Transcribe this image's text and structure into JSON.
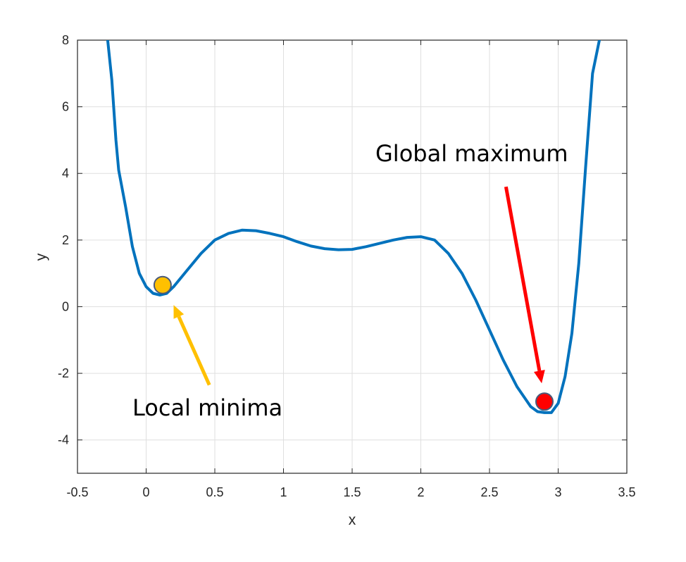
{
  "chart_data": {
    "type": "line",
    "xlabel": "x",
    "ylabel": "y",
    "xlim": [
      -0.5,
      3.5
    ],
    "ylim": [
      -5,
      8
    ],
    "xticks": [
      -0.5,
      0,
      0.5,
      1,
      1.5,
      2,
      2.5,
      3,
      3.5
    ],
    "xtick_labels": [
      "-0.5",
      "0",
      "0.5",
      "1",
      "1.5",
      "2",
      "2.5",
      "3",
      "3.5"
    ],
    "yticks": [
      -4,
      -2,
      0,
      2,
      4,
      6,
      8
    ],
    "ytick_labels": [
      "-4",
      "-2",
      "0",
      "2",
      "4",
      "6",
      "8"
    ],
    "grid": true,
    "series": [
      {
        "color": "#0072BD",
        "x": [
          -0.28,
          -0.25,
          -0.22,
          -0.2,
          -0.15,
          -0.1,
          -0.05,
          0.0,
          0.05,
          0.1,
          0.15,
          0.2,
          0.3,
          0.4,
          0.5,
          0.6,
          0.7,
          0.8,
          0.9,
          1.0,
          1.1,
          1.2,
          1.3,
          1.4,
          1.5,
          1.6,
          1.7,
          1.8,
          1.9,
          2.0,
          2.1,
          2.2,
          2.3,
          2.4,
          2.5,
          2.6,
          2.7,
          2.8,
          2.85,
          2.9,
          2.95,
          3.0,
          3.05,
          3.1,
          3.15,
          3.2,
          3.25,
          3.3
        ],
        "y": [
          8.0,
          6.8,
          5.0,
          4.1,
          3.0,
          1.8,
          1.0,
          0.6,
          0.4,
          0.35,
          0.4,
          0.6,
          1.1,
          1.6,
          2.0,
          2.2,
          2.3,
          2.28,
          2.2,
          2.1,
          1.95,
          1.82,
          1.74,
          1.71,
          1.72,
          1.8,
          1.9,
          2.0,
          2.08,
          2.1,
          2.0,
          1.6,
          1.0,
          0.2,
          -0.7,
          -1.6,
          -2.4,
          -3.0,
          -3.15,
          -3.18,
          -3.18,
          -2.9,
          -2.1,
          -0.8,
          1.3,
          4.2,
          7.0,
          8.0
        ]
      }
    ],
    "markers": [
      {
        "x": 0.12,
        "y": 0.65,
        "color": "#FFC000"
      },
      {
        "x": 2.9,
        "y": -2.85,
        "color": "#FF0000"
      }
    ],
    "annotations": [
      {
        "text": "Local minima",
        "color": "#FFC000",
        "arrow_from": [
          0.46,
          -2.35
        ],
        "arrow_to": [
          0.2,
          0.05
        ]
      },
      {
        "text": "Global maximum",
        "color": "#FF0000",
        "arrow_from": [
          2.62,
          3.6
        ],
        "arrow_to": [
          2.88,
          -2.3
        ]
      }
    ]
  }
}
